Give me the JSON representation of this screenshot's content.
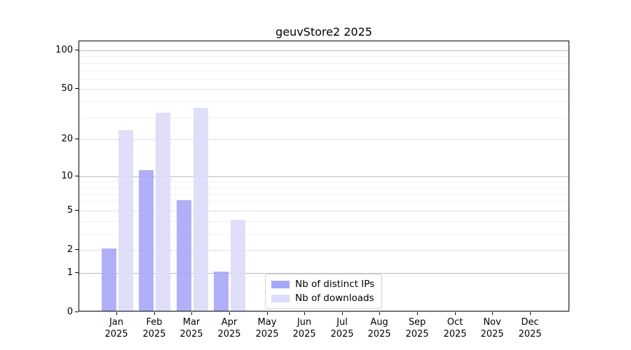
{
  "title": "geuvStore2 2025",
  "colors": {
    "distinct_ips_bar": "#a7a7f7",
    "downloads_bar": "#dcdcfa",
    "grid_major": "#bdbdbd",
    "grid_mid": "#e2e2e2",
    "grid_minor": "#f1f1f1",
    "spine": "#000000"
  },
  "legend": {
    "items": [
      "Nb of distinct IPs",
      "Nb of downloads"
    ]
  },
  "chart_data": {
    "type": "bar",
    "title": "geuvStore2 2025",
    "year": "2025",
    "categories": [
      "Jan",
      "Feb",
      "Mar",
      "Apr",
      "May",
      "Jun",
      "Jul",
      "Aug",
      "Sep",
      "Oct",
      "Nov",
      "Dec"
    ],
    "series": [
      {
        "name": "Nb of distinct IPs",
        "color": "#a7a7f7",
        "values": [
          2,
          11,
          6,
          1,
          0,
          0,
          0,
          0,
          0,
          0,
          0,
          0
        ]
      },
      {
        "name": "Nb of downloads",
        "color": "#dcdcfa",
        "values": [
          23,
          32,
          35,
          4,
          0,
          0,
          0,
          0,
          0,
          0,
          0,
          0
        ]
      }
    ],
    "xlabel": "",
    "ylabel": "",
    "yscale": "log1p",
    "yticks": [
      0,
      1,
      2,
      5,
      10,
      20,
      50,
      100
    ],
    "mid_gridlines": [
      2,
      5,
      20,
      50
    ],
    "major_gridlines": [
      1,
      10,
      100
    ],
    "minor_gridlines": [
      3,
      4,
      6,
      7,
      8,
      9,
      30,
      40,
      60,
      70,
      80,
      90
    ],
    "ylim": [
      0,
      110
    ],
    "grid": true,
    "legend_position": "lower center"
  }
}
